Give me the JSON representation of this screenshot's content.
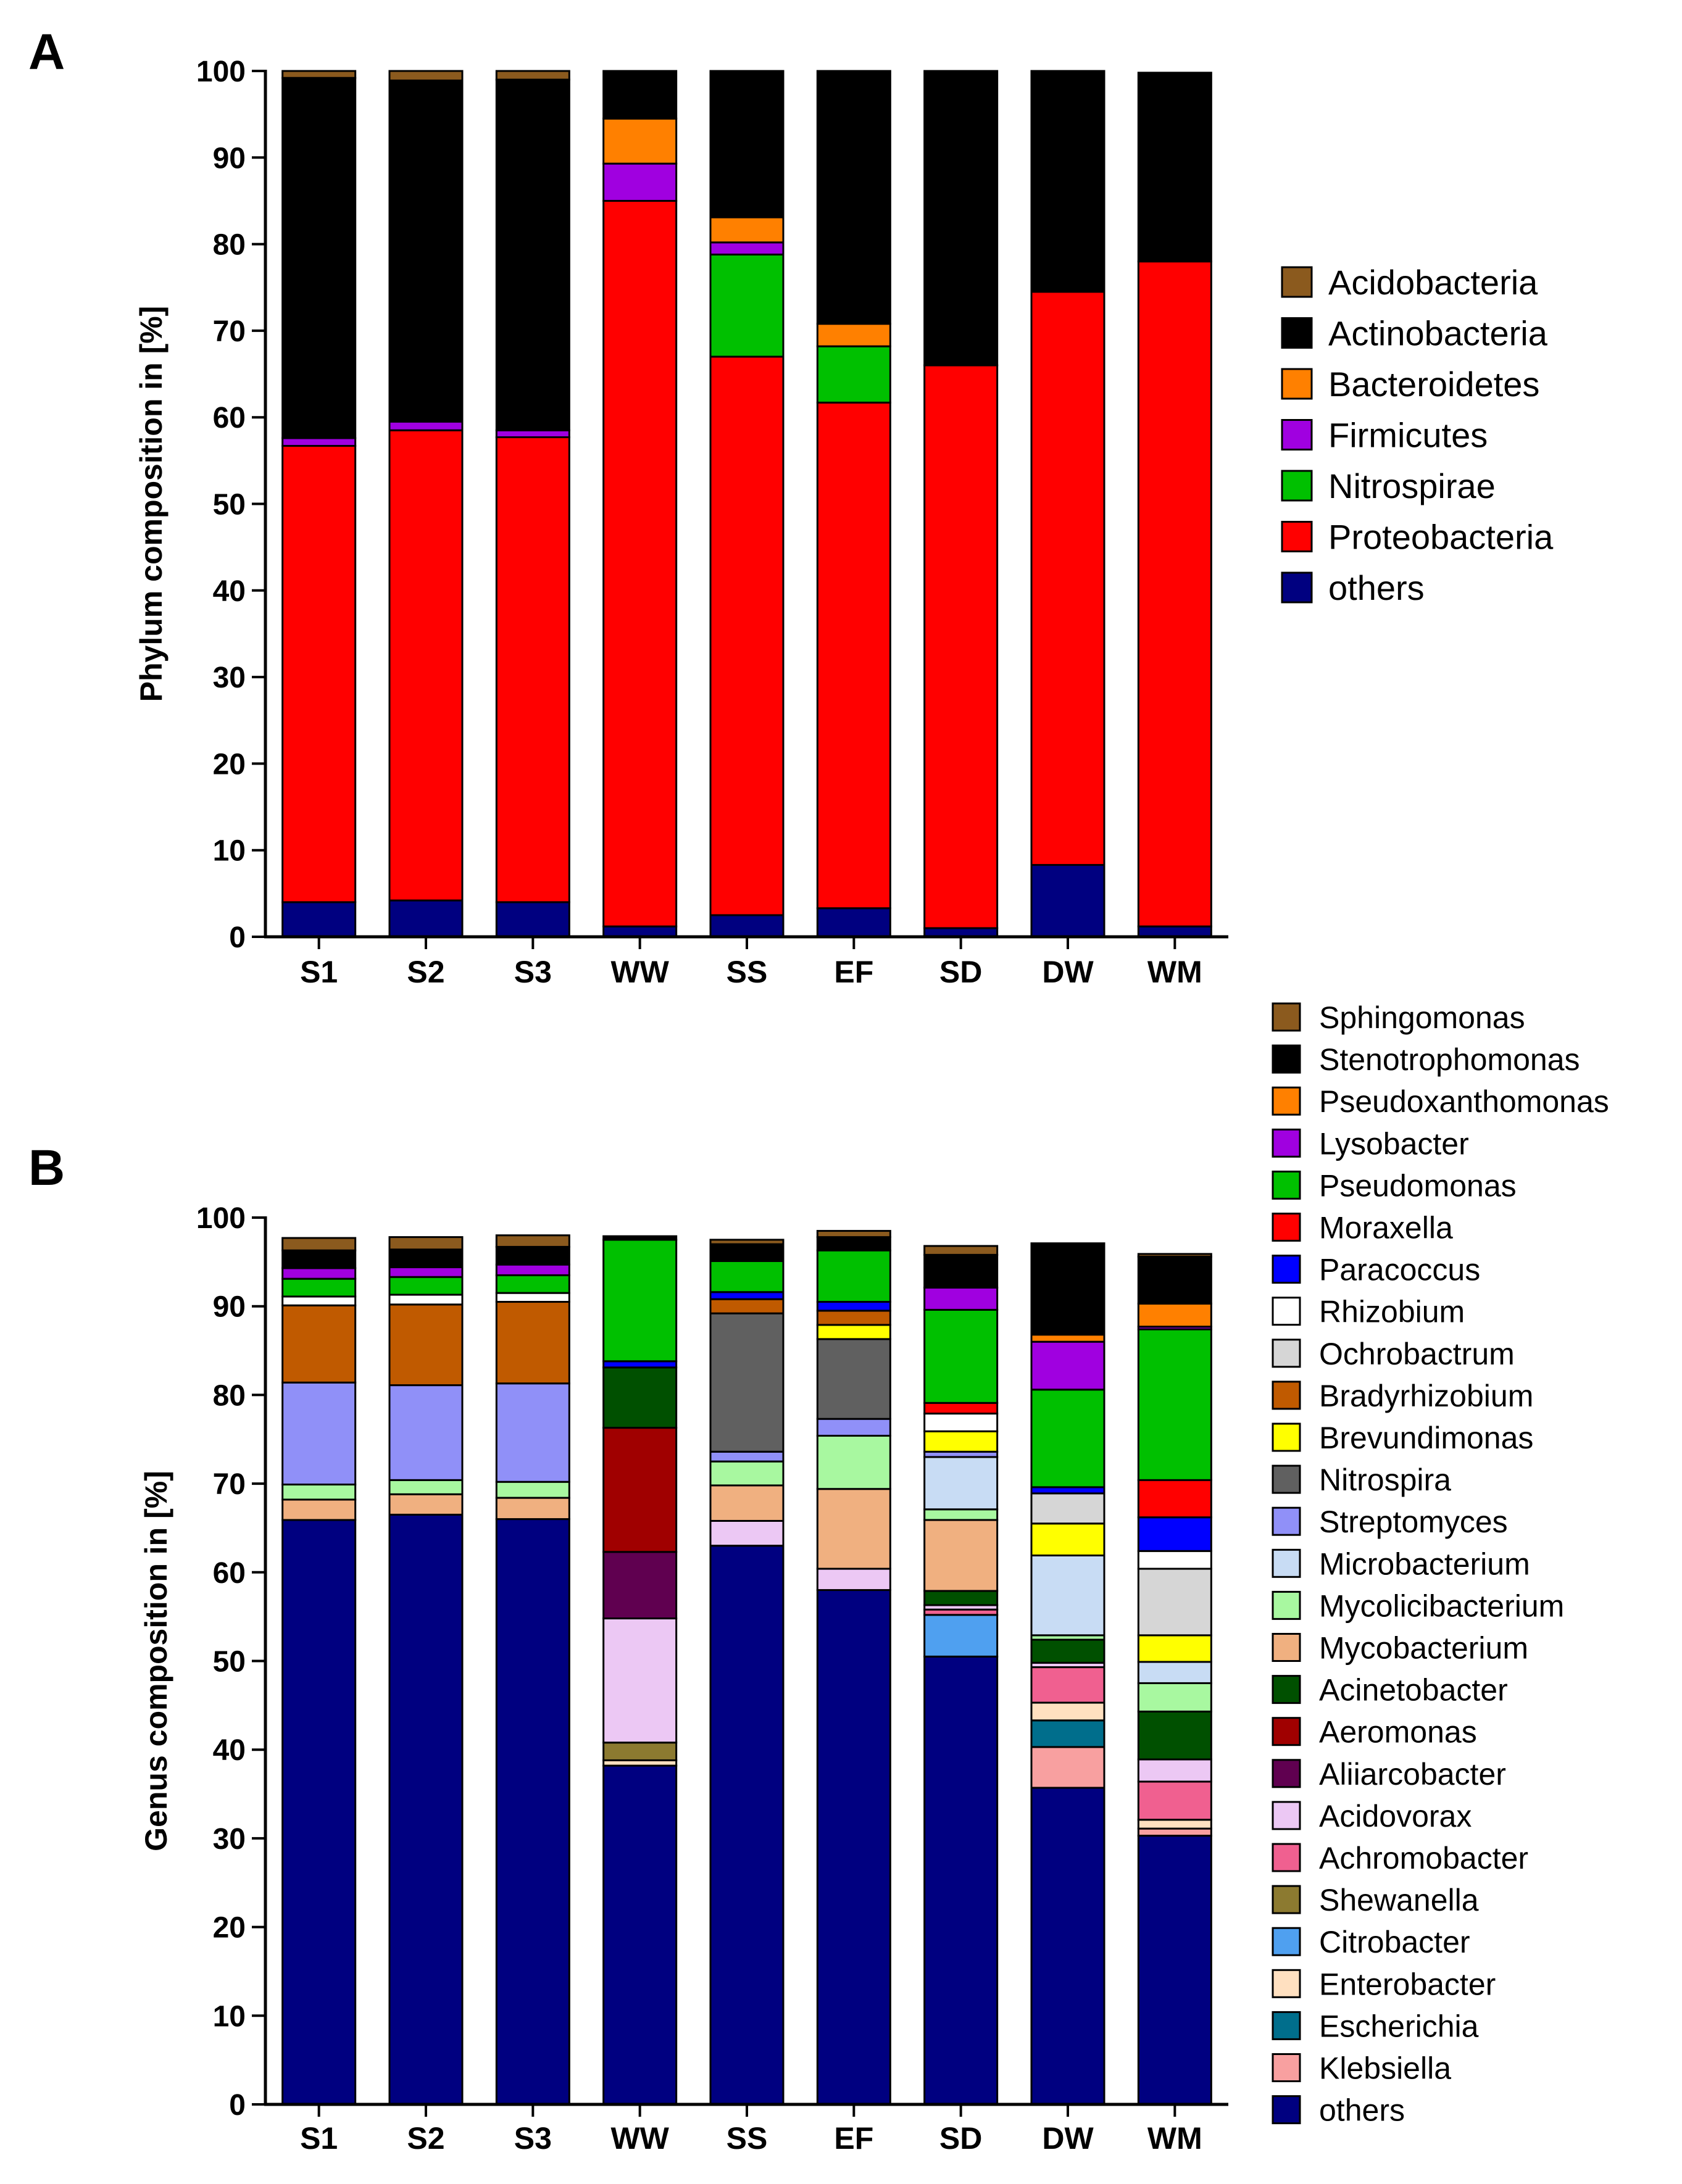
{
  "chart_data": [
    {
      "panel": "A",
      "type": "bar",
      "stacked": true,
      "title": "",
      "xlabel": "",
      "ylabel": "Phylum composition in [%]",
      "ylim": [
        0,
        100
      ],
      "yticks": [
        0,
        10,
        20,
        30,
        40,
        50,
        60,
        70,
        80,
        90,
        100
      ],
      "categories": [
        "S1",
        "S2",
        "S3",
        "WW",
        "SS",
        "EF",
        "SD",
        "DW",
        "WM"
      ],
      "legend_position": "right",
      "series": [
        {
          "name": "others",
          "color": "#000080",
          "values": [
            4,
            4.2,
            4,
            1.2,
            2.5,
            3.3,
            1,
            8.3,
            1.2
          ]
        },
        {
          "name": "Proteobacteria",
          "color": "#ff0000",
          "values": [
            52.7,
            54.3,
            53.7,
            83.8,
            64.5,
            58.4,
            65,
            66.2,
            76.8
          ]
        },
        {
          "name": "Nitrospirae",
          "color": "#00c000",
          "values": [
            0,
            0,
            0,
            0,
            11.8,
            6.5,
            0,
            0,
            0
          ]
        },
        {
          "name": "Firmicutes",
          "color": "#a000e0",
          "values": [
            0.9,
            1,
            0.8,
            4.3,
            1.4,
            0,
            0,
            0,
            0
          ]
        },
        {
          "name": "Bacteroidetes",
          "color": "#ff8000",
          "values": [
            0,
            0,
            0,
            5.2,
            2.9,
            2.6,
            0,
            0,
            0
          ]
        },
        {
          "name": "Actinobacteria",
          "color": "#000000",
          "values": [
            41.6,
            39.4,
            40.5,
            5.5,
            16.9,
            29.2,
            34,
            25.5,
            21.8
          ]
        },
        {
          "name": "Acidobacteria",
          "color": "#8b5a1e",
          "values": [
            0.8,
            1.1,
            1,
            0,
            0,
            0,
            0,
            0,
            0
          ]
        }
      ]
    },
    {
      "panel": "B",
      "type": "bar",
      "stacked": true,
      "title": "",
      "xlabel": "",
      "ylabel": "Genus composition in [%]",
      "ylim": [
        0,
        100
      ],
      "yticks": [
        0,
        10,
        20,
        30,
        40,
        50,
        60,
        70,
        80,
        90,
        100
      ],
      "categories": [
        "S1",
        "S2",
        "S3",
        "WW",
        "SS",
        "EF",
        "SD",
        "DW",
        "WM"
      ],
      "legend_position": "right",
      "series": [
        {
          "name": "others",
          "color": "#000080",
          "values": [
            65.9,
            66.5,
            66,
            38.2,
            63,
            58,
            50.5,
            35.7,
            30.3
          ]
        },
        {
          "name": "Klebsiella",
          "color": "#f8a0a0",
          "values": [
            0,
            0,
            0,
            0,
            0,
            0,
            0,
            4.6,
            0.8
          ]
        },
        {
          "name": "Escherichia",
          "color": "#006e8c",
          "values": [
            0,
            0,
            0,
            0,
            0,
            0,
            0,
            3,
            0
          ]
        },
        {
          "name": "Enterobacter",
          "color": "#ffe0c0",
          "values": [
            0,
            0,
            0,
            0.6,
            0,
            0,
            0,
            2,
            1
          ]
        },
        {
          "name": "Citrobacter",
          "color": "#4fa0f0",
          "values": [
            0,
            0,
            0,
            0,
            0,
            0,
            4.7,
            0,
            0
          ]
        },
        {
          "name": "Shewanella",
          "color": "#8c7a30",
          "values": [
            0,
            0,
            0,
            2,
            0,
            0,
            0,
            0,
            0
          ]
        },
        {
          "name": "Achromobacter",
          "color": "#f06090",
          "values": [
            0,
            0,
            0,
            0,
            0,
            0,
            0.6,
            4,
            4.3
          ]
        },
        {
          "name": "Acidovorax",
          "color": "#ecc8f4",
          "values": [
            0,
            0,
            0,
            14,
            2.8,
            2.4,
            0.5,
            0.5,
            2.5
          ]
        },
        {
          "name": "Aliiarcobacter",
          "color": "#600050",
          "values": [
            0,
            0,
            0,
            7.5,
            0,
            0,
            0,
            0,
            0
          ]
        },
        {
          "name": "Aeromonas",
          "color": "#a00000",
          "values": [
            0,
            0,
            0,
            14,
            0,
            0,
            0,
            0,
            0
          ]
        },
        {
          "name": "Acinetobacter",
          "color": "#005000",
          "values": [
            0,
            0,
            0,
            6.8,
            0,
            0,
            1.6,
            2.6,
            5.4
          ]
        },
        {
          "name": "Mycobacterium",
          "color": "#f0b080",
          "values": [
            2.3,
            2.3,
            2.4,
            0,
            4,
            9,
            8,
            0,
            0
          ]
        },
        {
          "name": "Mycolicibacterium",
          "color": "#a8f8a0",
          "values": [
            1.7,
            1.6,
            1.8,
            0,
            2.7,
            6,
            1.2,
            0.5,
            3.2
          ]
        },
        {
          "name": "Microbacterium",
          "color": "#c8dcf4",
          "values": [
            0,
            0,
            0,
            0,
            0,
            0,
            5.9,
            9,
            2.4
          ]
        },
        {
          "name": "Streptomyces",
          "color": "#9090f8",
          "values": [
            11.5,
            10.7,
            11.1,
            0,
            1.1,
            1.9,
            0.6,
            0,
            0
          ]
        },
        {
          "name": "Nitrospira",
          "color": "#606060",
          "values": [
            0,
            0,
            0,
            0,
            15.6,
            9,
            0,
            0,
            0
          ]
        },
        {
          "name": "Brevundimonas",
          "color": "#ffff00",
          "values": [
            0,
            0,
            0,
            0,
            0,
            1.6,
            2.3,
            3.6,
            3
          ]
        },
        {
          "name": "Bradyrhizobium",
          "color": "#c05a00",
          "values": [
            8.7,
            9.1,
            9.2,
            0,
            1.6,
            1.6,
            0,
            0,
            0
          ]
        },
        {
          "name": "Ochrobactrum",
          "color": "#d6d6d6",
          "values": [
            0,
            0,
            0,
            0,
            0,
            0,
            0,
            3.4,
            7.5
          ]
        },
        {
          "name": "Rhizobium",
          "color": "#ffffff",
          "values": [
            1,
            1.1,
            1,
            0,
            0,
            0,
            2,
            0,
            2
          ]
        },
        {
          "name": "Paracoccus",
          "color": "#0000ff",
          "values": [
            0,
            0,
            0,
            0.7,
            0.8,
            1,
            0,
            0.7,
            3.8
          ]
        },
        {
          "name": "Moraxella",
          "color": "#ff0000",
          "values": [
            0,
            0,
            0,
            0,
            0,
            0,
            1.2,
            0,
            4.2
          ]
        },
        {
          "name": "Pseudomonas",
          "color": "#00c000",
          "values": [
            2,
            2,
            2,
            13.7,
            3.5,
            5.8,
            10.5,
            11,
            17
          ]
        },
        {
          "name": "Lysobacter",
          "color": "#a000e0",
          "values": [
            1.2,
            1.1,
            1.2,
            0,
            0,
            0,
            2.5,
            5.4,
            0.3
          ]
        },
        {
          "name": "Pseudoxanthomonas",
          "color": "#ff8000",
          "values": [
            0,
            0,
            0,
            0,
            0,
            0,
            0,
            0.8,
            2.6
          ]
        },
        {
          "name": "Stenotrophomonas",
          "color": "#000000",
          "values": [
            2,
            2,
            2,
            0.4,
            1.9,
            1.5,
            3.7,
            10.3,
            5.3
          ]
        },
        {
          "name": "Sphingomonas",
          "color": "#8b5a1e",
          "values": [
            1.4,
            1.4,
            1.3,
            0,
            0.5,
            0.7,
            1,
            0,
            0.3
          ]
        }
      ]
    }
  ]
}
